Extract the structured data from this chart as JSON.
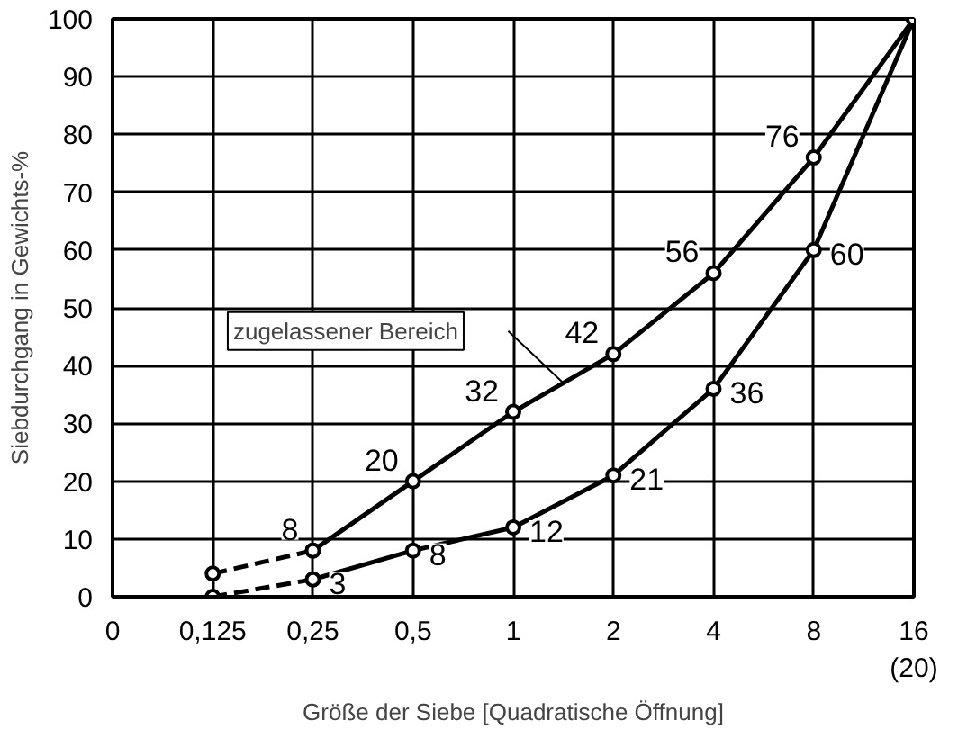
{
  "chart_data": {
    "type": "line",
    "xlabel": "Größe der Siebe [Quadratische Öffnung]",
    "ylabel": "Siebdurchgang in Gewichts-%",
    "categories": [
      "0",
      "0,125",
      "0,25",
      "0,5",
      "1",
      "2",
      "4",
      "8",
      "16\n(20)"
    ],
    "ylim": [
      0,
      100
    ],
    "yticks": [
      0,
      10,
      20,
      30,
      40,
      50,
      60,
      70,
      80,
      90,
      100
    ],
    "grid": true,
    "marker": "circle",
    "annotations": [
      "zugelassener Bereich"
    ],
    "series": [
      {
        "color": "#000000",
        "line_style": "dashed",
        "values": [
          null,
          4,
          8,
          null,
          null,
          null,
          null,
          null,
          null
        ]
      },
      {
        "color": "#000000",
        "line_style": "solid",
        "values": [
          null,
          null,
          8,
          20,
          32,
          42,
          56,
          76,
          100
        ],
        "value_labels": [
          null,
          null,
          "8",
          "20",
          "32",
          "42",
          "56",
          "76",
          null
        ]
      },
      {
        "color": "#000000",
        "line_style": "dashed",
        "values": [
          null,
          0,
          3,
          null,
          null,
          null,
          null,
          null,
          null
        ]
      },
      {
        "color": "#000000",
        "line_style": "solid",
        "values": [
          null,
          null,
          3,
          8,
          12,
          21,
          36,
          60,
          100
        ],
        "value_labels": [
          null,
          null,
          "3",
          "8",
          "12",
          "21",
          "36",
          "60",
          null
        ]
      }
    ]
  }
}
